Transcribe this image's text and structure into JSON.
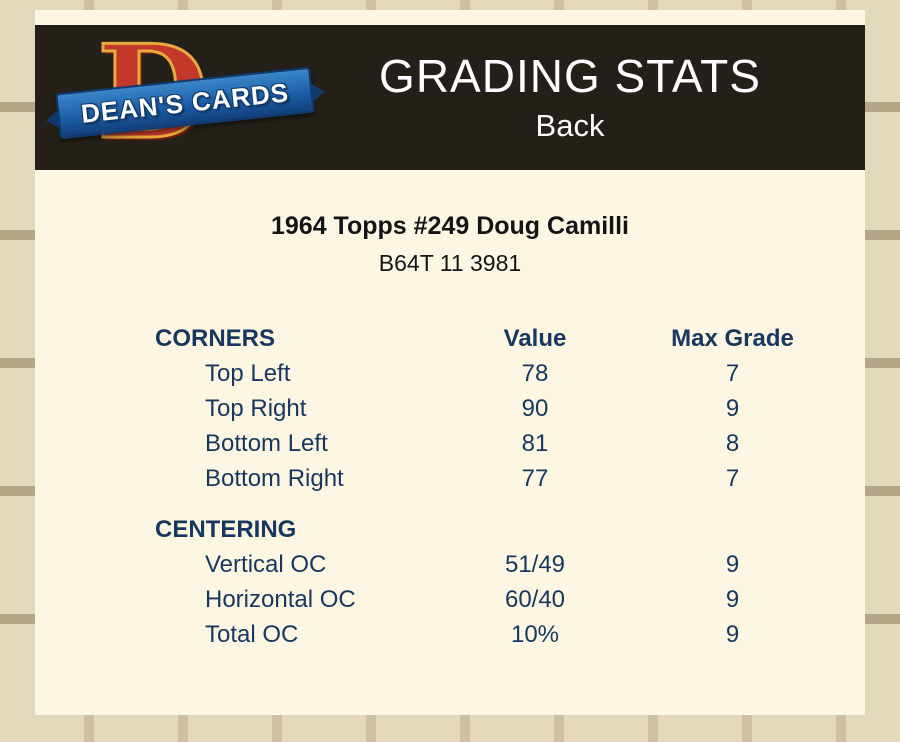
{
  "header": {
    "logo": {
      "letter": "D",
      "name": "DEAN'S CARDS"
    },
    "title": "GRADING STATS",
    "subtitle": "Back"
  },
  "card": {
    "title": "1964 Topps #249 Doug Camilli",
    "code": "B64T 11 3981"
  },
  "stats": {
    "columns": {
      "value": "Value",
      "max_grade": "Max Grade"
    },
    "corners": {
      "label": "CORNERS",
      "rows": [
        {
          "label": "Top Left",
          "value": "78",
          "max": "7"
        },
        {
          "label": "Top Right",
          "value": "90",
          "max": "9"
        },
        {
          "label": "Bottom Left",
          "value": "81",
          "max": "8"
        },
        {
          "label": "Bottom Right",
          "value": "77",
          "max": "7"
        }
      ]
    },
    "centering": {
      "label": "CENTERING",
      "rows": [
        {
          "label": "Vertical OC",
          "value": "51/49",
          "max": "9"
        },
        {
          "label": "Horizontal OC",
          "value": "60/40",
          "max": "9"
        },
        {
          "label": "Total OC",
          "value": "10%",
          "max": "9"
        }
      ]
    }
  },
  "colors": {
    "text_navy": "#17375e",
    "header_bg": "#242019",
    "panel_bg": "#fcf6e2",
    "page_bg": "#b5a484",
    "logo_red": "#c2392b",
    "logo_gold": "#e8a93d",
    "banner_blue": "#1c5fa8"
  }
}
